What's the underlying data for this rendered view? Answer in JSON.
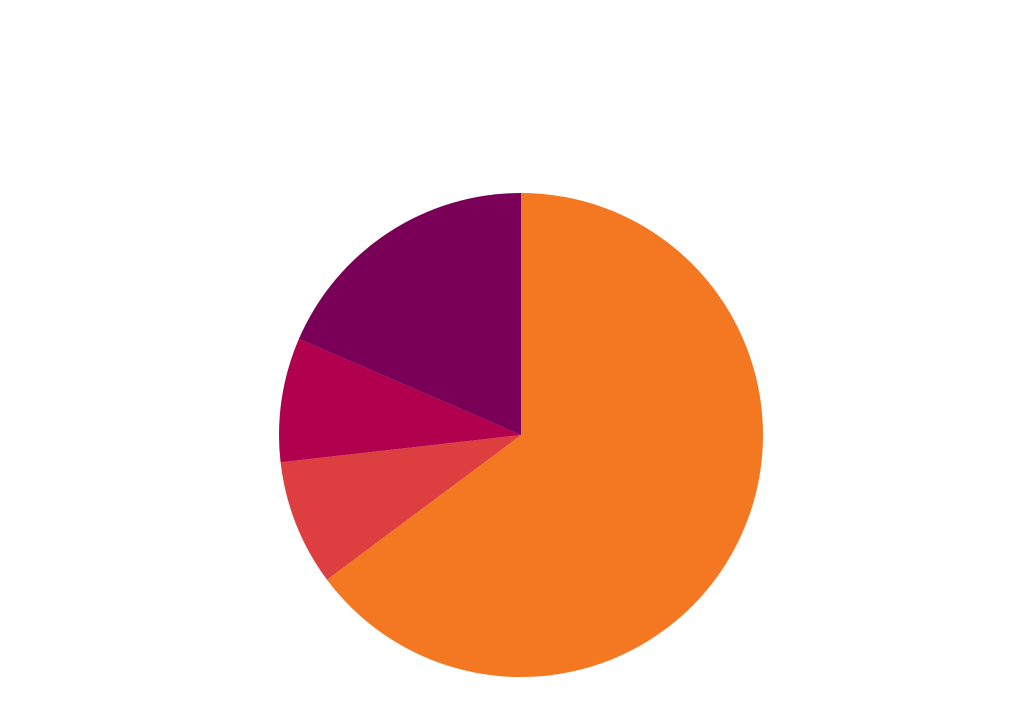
{
  "chart_data": {
    "type": "pie",
    "start": "12 o'clock",
    "direction": "clockwise",
    "slices": [
      {
        "value": 64.8,
        "color": "#F47721"
      },
      {
        "value": 8.4,
        "color": "#DD3E3F"
      },
      {
        "value": 8.3,
        "color": "#B0004E"
      },
      {
        "value": 18.5,
        "color": "#7A0057"
      }
    ]
  }
}
